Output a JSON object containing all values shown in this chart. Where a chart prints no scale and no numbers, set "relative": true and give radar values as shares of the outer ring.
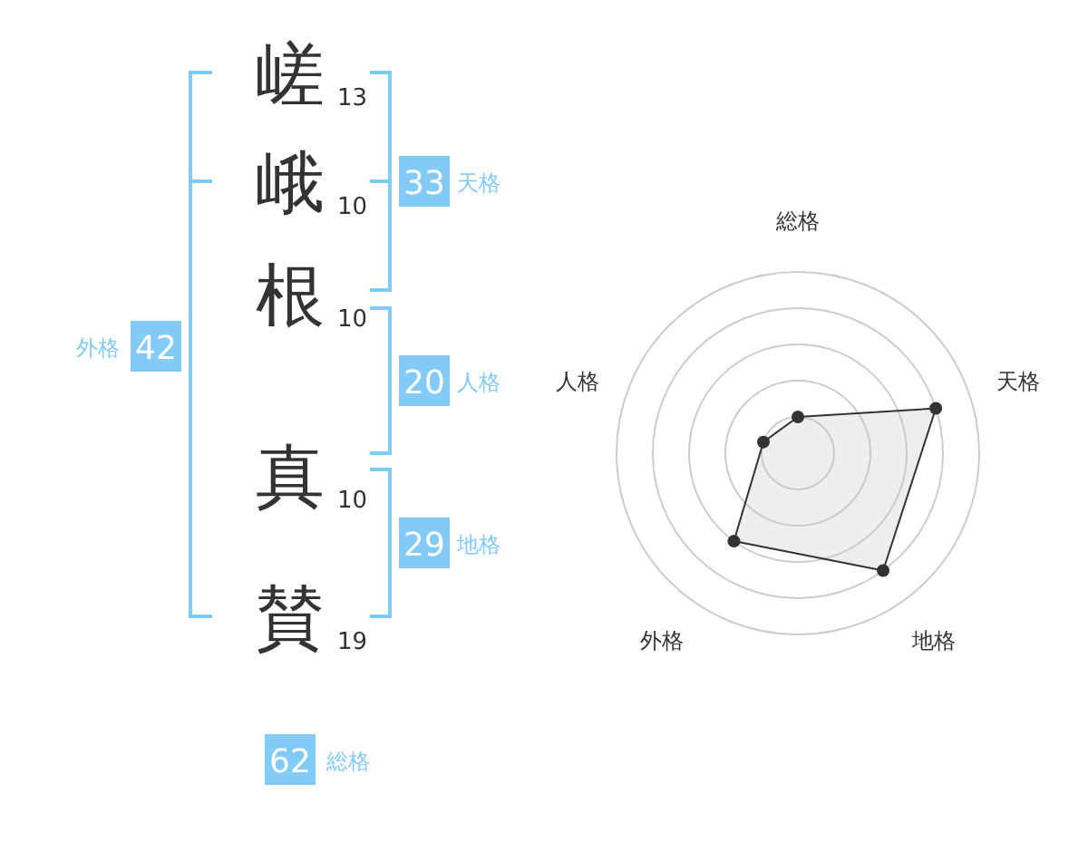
{
  "chart_data": [
    {
      "type": "other",
      "categories": [
        "嵯",
        "峨",
        "根",
        "真",
        "賛"
      ],
      "values": [
        13,
        10,
        10,
        10,
        19
      ],
      "data_labels": true,
      "color": "#82cbf7",
      "annotations": [
        "33",
        "天格",
        "20",
        "人格",
        "29",
        "地格",
        "42",
        "外格",
        "62",
        "総格"
      ]
    },
    {
      "type": "radar",
      "categories": [
        "総格",
        "天格",
        "地格",
        "外格",
        "人格"
      ],
      "relative": true,
      "marker": "circle",
      "series": [
        {
          "color": "#333333",
          "values": [
            0.2,
            0.8,
            0.8,
            0.6,
            0.2
          ]
        }
      ]
    }
  ]
}
